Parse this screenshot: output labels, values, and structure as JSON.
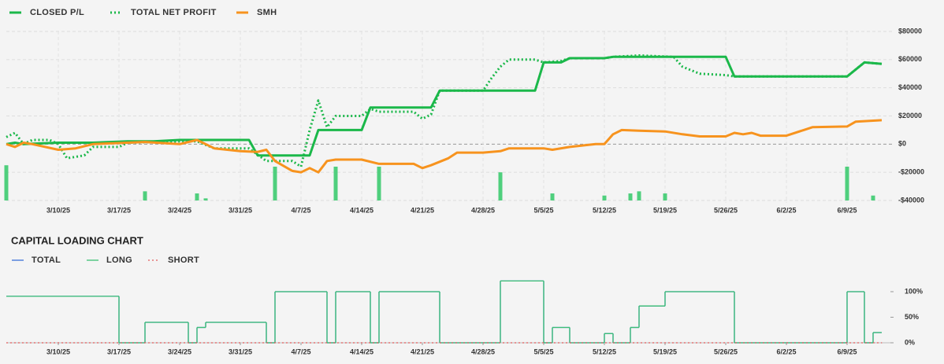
{
  "chart_data": [
    {
      "type": "line",
      "xlim": [
        "3/4/25",
        "6/14/25"
      ],
      "xticks": [
        "3/10/25",
        "3/17/25",
        "3/24/25",
        "3/31/25",
        "4/7/25",
        "4/14/25",
        "4/21/25",
        "4/28/25",
        "5/5/25",
        "5/12/25",
        "5/19/25",
        "5/26/25",
        "6/2/25",
        "6/9/25"
      ],
      "ylim": [
        -40000,
        80000
      ],
      "yticks": [
        {
          "value": -40000,
          "label": "-$40000"
        },
        {
          "value": -20000,
          "label": "-$20000"
        },
        {
          "value": 0,
          "label": "$0"
        },
        {
          "value": 20000,
          "label": "$20000"
        },
        {
          "value": 40000,
          "label": "$40000"
        },
        {
          "value": 60000,
          "label": "$60000"
        },
        {
          "value": 80000,
          "label": "$80000"
        }
      ],
      "grid": true,
      "series": [
        {
          "name": "CLOSED P/L",
          "color": "#1bb84a",
          "style": "solid",
          "x": [
            "3/4/25",
            "3/5/25",
            "3/6/25",
            "3/10/25",
            "3/14/25",
            "3/18/25",
            "3/21/25",
            "3/24/25",
            "3/31/25",
            "4/1/25",
            "4/2/25",
            "4/8/25",
            "4/9/25",
            "4/14/25",
            "4/15/25",
            "4/22/25",
            "4/23/25",
            "5/4/25",
            "5/5/25",
            "5/7/25",
            "5/8/25",
            "5/12/25",
            "5/13/25",
            "5/26/25",
            "5/27/25",
            "6/9/25",
            "6/11/25",
            "6/13/25"
          ],
          "values": [
            0,
            1000,
            0,
            1000,
            1000,
            2000,
            2000,
            3000,
            3000,
            3000,
            -8000,
            -8000,
            10000,
            10000,
            26000,
            26000,
            38000,
            38000,
            58000,
            58000,
            61000,
            61000,
            62000,
            62000,
            48000,
            48000,
            58000,
            57000
          ]
        },
        {
          "name": "TOTAL NET PROFIT",
          "color": "#1bb84a",
          "style": "dotted",
          "x": [
            "3/4/25",
            "3/5/25",
            "3/6/25",
            "3/7/25",
            "3/9/25",
            "3/10/25",
            "3/11/25",
            "3/13/25",
            "3/14/25",
            "3/17/25",
            "3/18/25",
            "3/24/25",
            "3/26/25",
            "3/28/25",
            "4/1/25",
            "4/3/25",
            "4/6/25",
            "4/7/25",
            "4/8/25",
            "4/9/25",
            "4/10/25",
            "4/11/25",
            "4/14/25",
            "4/15/25",
            "4/16/25",
            "4/20/25",
            "4/21/25",
            "4/22/25",
            "4/23/25",
            "4/28/25",
            "4/29/25",
            "4/30/25",
            "5/1/25",
            "5/4/25",
            "5/5/25",
            "5/7/25",
            "5/8/25",
            "5/12/25",
            "5/13/25",
            "5/16/25",
            "5/20/25",
            "5/21/25",
            "5/23/25",
            "5/26/25",
            "5/27/25",
            "6/9/25",
            "6/11/25",
            "6/13/25"
          ],
          "values": [
            5000,
            8000,
            0,
            3000,
            3000,
            0,
            -10000,
            -8000,
            -2000,
            -2000,
            1000,
            2000,
            2000,
            -3000,
            -3000,
            -12000,
            -12000,
            -16000,
            10000,
            31000,
            12000,
            20000,
            20000,
            25000,
            23000,
            23000,
            18000,
            21000,
            38000,
            38000,
            47000,
            55000,
            60000,
            60000,
            58000,
            59000,
            61000,
            61000,
            62000,
            63000,
            62000,
            55000,
            50000,
            49000,
            48000,
            48000,
            58000,
            57000
          ]
        },
        {
          "name": "SMH",
          "color": "#f7931e",
          "style": "solid",
          "x": [
            "3/4/25",
            "3/5/25",
            "3/6/25",
            "3/7/25",
            "3/10/25",
            "3/12/25",
            "3/14/25",
            "3/18/25",
            "3/20/25",
            "3/24/25",
            "3/26/25",
            "3/28/25",
            "3/31/25",
            "4/2/25",
            "4/3/25",
            "4/4/25",
            "4/6/25",
            "4/7/25",
            "4/8/25",
            "4/9/25",
            "4/10/25",
            "4/11/25",
            "4/14/25",
            "4/16/25",
            "4/20/25",
            "4/21/25",
            "4/22/25",
            "4/24/25",
            "4/25/25",
            "4/28/25",
            "4/30/25",
            "5/1/25",
            "5/5/25",
            "5/6/25",
            "5/8/25",
            "5/11/25",
            "5/12/25",
            "5/13/25",
            "5/14/25",
            "5/16/25",
            "5/19/25",
            "5/21/25",
            "5/23/25",
            "5/26/25",
            "5/27/25",
            "5/28/25",
            "5/29/25",
            "5/30/25",
            "6/2/25",
            "6/4/25",
            "6/5/25",
            "6/9/25",
            "6/10/25",
            "6/13/25"
          ],
          "values": [
            0,
            -2000,
            1000,
            0,
            -4000,
            -3000,
            0,
            1000,
            1500,
            0,
            3000,
            -3000,
            -5000,
            -5500,
            -4000,
            -12000,
            -19000,
            -20000,
            -17000,
            -20000,
            -12000,
            -11000,
            -11000,
            -14000,
            -14000,
            -17000,
            -15000,
            -10000,
            -6000,
            -6000,
            -5000,
            -3000,
            -3000,
            -4000,
            -2000,
            0,
            0,
            7000,
            10000,
            9500,
            9000,
            7000,
            5500,
            5500,
            8000,
            7000,
            8000,
            6000,
            6000,
            10000,
            12000,
            12500,
            16000,
            17000
          ]
        },
        {
          "type": "bar",
          "color": "#4fcf7d",
          "x": [
            "3/4/25",
            "3/20/25",
            "3/26/25",
            "3/27/25",
            "4/4/25",
            "4/11/25",
            "4/16/25",
            "4/30/25",
            "5/6/25",
            "5/12/25",
            "5/15/25",
            "5/16/25",
            "5/19/25",
            "6/9/25",
            "6/12/25"
          ],
          "values": [
            -15000,
            -33500,
            -35000,
            -38500,
            -16000,
            -16000,
            -16000,
            -20000,
            -35000,
            -36500,
            -35000,
            -33500,
            -35000,
            -16000,
            -36500
          ]
        }
      ]
    },
    {
      "type": "step",
      "title": "CAPITAL LOADING CHART",
      "xlim": [
        "3/4/25",
        "6/14/25"
      ],
      "xticks": [
        "3/10/25",
        "3/17/25",
        "3/24/25",
        "3/31/25",
        "4/7/25",
        "4/14/25",
        "4/21/25",
        "4/28/25",
        "5/5/25",
        "5/12/25",
        "5/19/25",
        "5/26/25",
        "6/2/25",
        "6/9/25"
      ],
      "ylim": [
        0,
        130
      ],
      "yticks": [
        {
          "value": 0,
          "label": "0%"
        },
        {
          "value": 50,
          "label": "50%"
        },
        {
          "value": 100,
          "label": "100%"
        }
      ],
      "grid": false,
      "series": [
        {
          "name": "TOTAL",
          "color": "#3a6fd8",
          "style": "solid",
          "x": [
            "3/4/25",
            "3/17/25",
            "3/20/25",
            "3/25/25",
            "3/26/25",
            "3/27/25",
            "4/3/25",
            "4/4/25",
            "4/10/25",
            "4/11/25",
            "4/15/25",
            "4/16/25",
            "4/23/25",
            "4/30/25",
            "5/5/25",
            "5/6/25",
            "5/8/25",
            "5/12/25",
            "5/13/25",
            "5/15/25",
            "5/16/25",
            "5/19/25",
            "5/27/25",
            "6/9/25",
            "6/11/25",
            "6/12/25",
            "6/13/25"
          ],
          "values": [
            91,
            0,
            40,
            0,
            30,
            40,
            0,
            100,
            0,
            100,
            0,
            100,
            0,
            121,
            0,
            30,
            0,
            18,
            0,
            30,
            72,
            100,
            0,
            100,
            0,
            20,
            20
          ]
        },
        {
          "name": "LONG",
          "color": "#3cbf73",
          "style": "solid",
          "x": [
            "3/4/25",
            "3/17/25",
            "3/20/25",
            "3/25/25",
            "3/26/25",
            "3/27/25",
            "4/3/25",
            "4/4/25",
            "4/10/25",
            "4/11/25",
            "4/15/25",
            "4/16/25",
            "4/23/25",
            "4/30/25",
            "5/5/25",
            "5/6/25",
            "5/8/25",
            "5/12/25",
            "5/13/25",
            "5/15/25",
            "5/16/25",
            "5/19/25",
            "5/27/25",
            "6/9/25",
            "6/11/25",
            "6/12/25",
            "6/13/25"
          ],
          "values": [
            91,
            0,
            40,
            0,
            30,
            40,
            0,
            100,
            0,
            100,
            0,
            100,
            0,
            121,
            0,
            30,
            0,
            18,
            0,
            30,
            72,
            100,
            0,
            100,
            0,
            20,
            20
          ]
        },
        {
          "name": "SHORT",
          "color": "#e05a5a",
          "style": "dotted",
          "x": [
            "3/4/25",
            "6/13/25"
          ],
          "values": [
            0,
            0
          ]
        }
      ]
    }
  ]
}
